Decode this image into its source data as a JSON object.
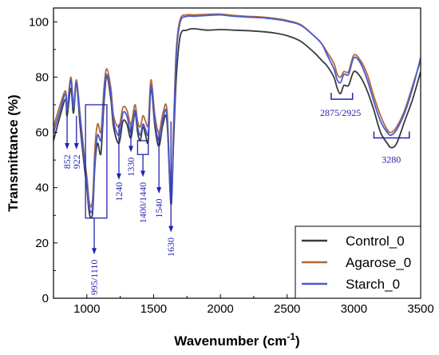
{
  "chart_data": {
    "type": "line",
    "xlabel": "Wavenumber (cm",
    "xlabel_sup": "-1",
    "xlabel_end": ")",
    "ylabel": "Transmittance (%)",
    "xlim": [
      750,
      3500
    ],
    "ylim": [
      0,
      105
    ],
    "xticks": [
      "1000",
      "1500",
      "2000",
      "2500",
      "3000",
      "3500"
    ],
    "yticks": [
      "0",
      "20",
      "40",
      "60",
      "80",
      "100"
    ],
    "xtick_values": [
      1000,
      1500,
      2000,
      2500,
      3000,
      3500
    ],
    "ytick_values": [
      0,
      20,
      40,
      60,
      80,
      100
    ],
    "series": [
      {
        "name": "Control_0",
        "color": "#3a3a3a",
        "x": [
          750,
          800,
          840,
          852,
          880,
          900,
          922,
          950,
          980,
          1000,
          1015,
          1030,
          1045,
          1060,
          1080,
          1100,
          1110,
          1130,
          1150,
          1180,
          1200,
          1240,
          1270,
          1300,
          1330,
          1360,
          1380,
          1400,
          1420,
          1440,
          1460,
          1480,
          1510,
          1540,
          1570,
          1600,
          1630,
          1650,
          1670,
          1700,
          1750,
          1800,
          1900,
          2000,
          2100,
          2200,
          2300,
          2400,
          2500,
          2600,
          2700,
          2760,
          2800,
          2850,
          2875,
          2900,
          2925,
          2960,
          3000,
          3050,
          3100,
          3150,
          3200,
          3250,
          3280,
          3320,
          3380,
          3440,
          3500
        ],
        "y": [
          57,
          66,
          72,
          66,
          76,
          67,
          78,
          62,
          48,
          40,
          32,
          29,
          32,
          48,
          56,
          52,
          55,
          72,
          80,
          72,
          62,
          56,
          64,
          63,
          58,
          67,
          60,
          57,
          62,
          59,
          57,
          76,
          62,
          55,
          63,
          64,
          34,
          57,
          80,
          95,
          97,
          97.5,
          97,
          97.2,
          97,
          96.8,
          96.5,
          96,
          95,
          93,
          89,
          86,
          84,
          80,
          76,
          74,
          77,
          77,
          82,
          80,
          75,
          68,
          60,
          56,
          54.5,
          56,
          64,
          72,
          82
        ]
      },
      {
        "name": "Agarose_0",
        "color": "#b06a3a",
        "x": [
          750,
          800,
          840,
          852,
          880,
          900,
          922,
          950,
          980,
          1000,
          1015,
          1030,
          1045,
          1060,
          1080,
          1100,
          1110,
          1130,
          1150,
          1180,
          1200,
          1240,
          1270,
          1300,
          1330,
          1360,
          1380,
          1400,
          1420,
          1440,
          1460,
          1480,
          1510,
          1540,
          1570,
          1600,
          1630,
          1650,
          1670,
          1700,
          1750,
          1800,
          1900,
          2000,
          2100,
          2200,
          2300,
          2400,
          2500,
          2600,
          2700,
          2760,
          2800,
          2850,
          2875,
          2900,
          2925,
          2960,
          3000,
          3050,
          3100,
          3150,
          3200,
          3250,
          3280,
          3320,
          3380,
          3440,
          3500
        ],
        "y": [
          62,
          70,
          75,
          69,
          80,
          70,
          79,
          66,
          52,
          44,
          36,
          33,
          37,
          54,
          63,
          60,
          62,
          77,
          83,
          76,
          66,
          62,
          69,
          68,
          63,
          70,
          64,
          62,
          66,
          64,
          63,
          79,
          66,
          60,
          67,
          68,
          37,
          63,
          90,
          101,
          102.5,
          102.5,
          102.7,
          102.8,
          102.3,
          102,
          101.8,
          101.3,
          100.5,
          99,
          95,
          92,
          89,
          85,
          81,
          80,
          82,
          82,
          88,
          86,
          81,
          73,
          66,
          61,
          60,
          62,
          68,
          77,
          86
        ]
      },
      {
        "name": "Starch_0",
        "color": "#4a5ad0",
        "x": [
          750,
          800,
          840,
          852,
          880,
          900,
          922,
          950,
          980,
          1000,
          1015,
          1030,
          1045,
          1060,
          1080,
          1100,
          1110,
          1130,
          1150,
          1180,
          1200,
          1240,
          1270,
          1300,
          1330,
          1360,
          1380,
          1400,
          1420,
          1440,
          1460,
          1480,
          1510,
          1540,
          1570,
          1600,
          1630,
          1650,
          1670,
          1700,
          1750,
          1800,
          1900,
          2000,
          2100,
          2200,
          2300,
          2400,
          2500,
          2600,
          2700,
          2760,
          2800,
          2850,
          2875,
          2900,
          2925,
          2960,
          3000,
          3050,
          3100,
          3150,
          3200,
          3250,
          3280,
          3320,
          3380,
          3440,
          3500
        ],
        "y": [
          60,
          68,
          74,
          68,
          79,
          69,
          78,
          65,
          50,
          42,
          34,
          31,
          34,
          50,
          59,
          57,
          59,
          75,
          81,
          74,
          64,
          59,
          67,
          66,
          60,
          68,
          62,
          59,
          63,
          61,
          60,
          77,
          64,
          57,
          65,
          66,
          35,
          60,
          88,
          100,
          102,
          102,
          102.3,
          102.5,
          102,
          101.7,
          101.5,
          101,
          100.2,
          98.8,
          95,
          92,
          88,
          83,
          79,
          78,
          81,
          81,
          87,
          85,
          79,
          71,
          64,
          60,
          59,
          61,
          67,
          76,
          87
        ]
      }
    ],
    "legend": {
      "position": "bottom-right"
    },
    "annotations": [
      {
        "label": "852",
        "x": 852,
        "arrow_from": 66,
        "arrow_to": 55,
        "label_y": 52
      },
      {
        "label": "922",
        "x": 922,
        "arrow_from": 66,
        "arrow_to": 55,
        "label_y": 52
      },
      {
        "label": "995/1110",
        "x": 1055,
        "arrow_from": 29,
        "arrow_to": 17,
        "label_y": 14,
        "box_x": [
          990,
          1150
        ],
        "box_y": [
          29,
          70
        ]
      },
      {
        "label": "1240",
        "x": 1240,
        "arrow_from": 63,
        "arrow_to": 44,
        "label_y": 42
      },
      {
        "label": "1330",
        "x": 1330,
        "arrow_from": 63,
        "arrow_to": 54,
        "label_y": 51
      },
      {
        "label": "1400/1440",
        "x": 1420,
        "arrow_from": 52,
        "arrow_to": 45,
        "label_y": 42,
        "box_x": [
          1380,
          1460
        ],
        "box_y": [
          52,
          57
        ]
      },
      {
        "label": "1540",
        "x": 1540,
        "arrow_from": 60,
        "arrow_to": 39,
        "label_y": 36
      },
      {
        "label": "1630",
        "x": 1630,
        "arrow_from": 64,
        "arrow_to": 25,
        "label_y": 22
      },
      {
        "label": "2875/2925",
        "x": 2900,
        "label_y": 66,
        "bracket_x": [
          2830,
          2990
        ],
        "bracket_y": 72
      },
      {
        "label": "3280",
        "x": 3280,
        "label_y": 49,
        "bracket_x": [
          3150,
          3415
        ],
        "bracket_y": 58
      }
    ]
  }
}
